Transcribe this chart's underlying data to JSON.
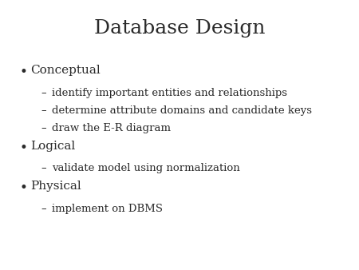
{
  "title": "Database Design",
  "background_color": "#ffffff",
  "title_color": "#2a2a2a",
  "text_color": "#2a2a2a",
  "title_fontsize": 18,
  "title_font": "serif",
  "body_fontsize": 11,
  "sub_fontsize": 9.5,
  "bullet_items": [
    {
      "label": "Conceptual",
      "subitems": [
        "identify important entities and relationships",
        "determine attribute domains and candidate keys",
        "draw the E-R diagram"
      ]
    },
    {
      "label": "Logical",
      "subitems": [
        "validate model using normalization"
      ]
    },
    {
      "label": "Physical",
      "subitems": [
        "implement on DBMS"
      ]
    }
  ]
}
